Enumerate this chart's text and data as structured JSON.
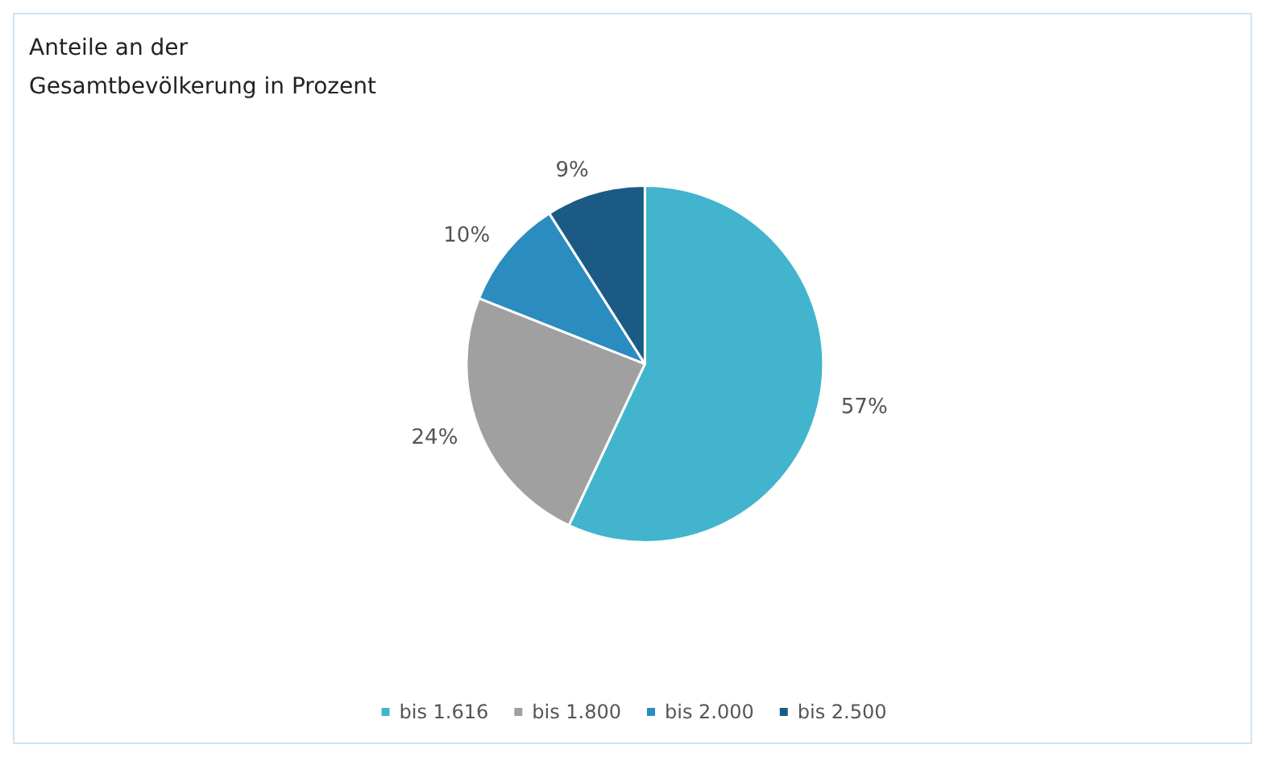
{
  "chart_data": {
    "type": "pie",
    "title": "Anteile an der\nGesamtbevölkerung in Prozent",
    "categories": [
      "bis 1.616",
      "bis 1.800",
      "bis 2.000",
      "bis 2.500"
    ],
    "values": [
      57,
      24,
      10,
      9
    ],
    "colors": [
      "#42b4cd",
      "#a0a0a0",
      "#2b8cbf",
      "#1a5a85"
    ],
    "value_labels": [
      "57%",
      "24%",
      "10%",
      "9%"
    ],
    "legend": "bottom"
  }
}
